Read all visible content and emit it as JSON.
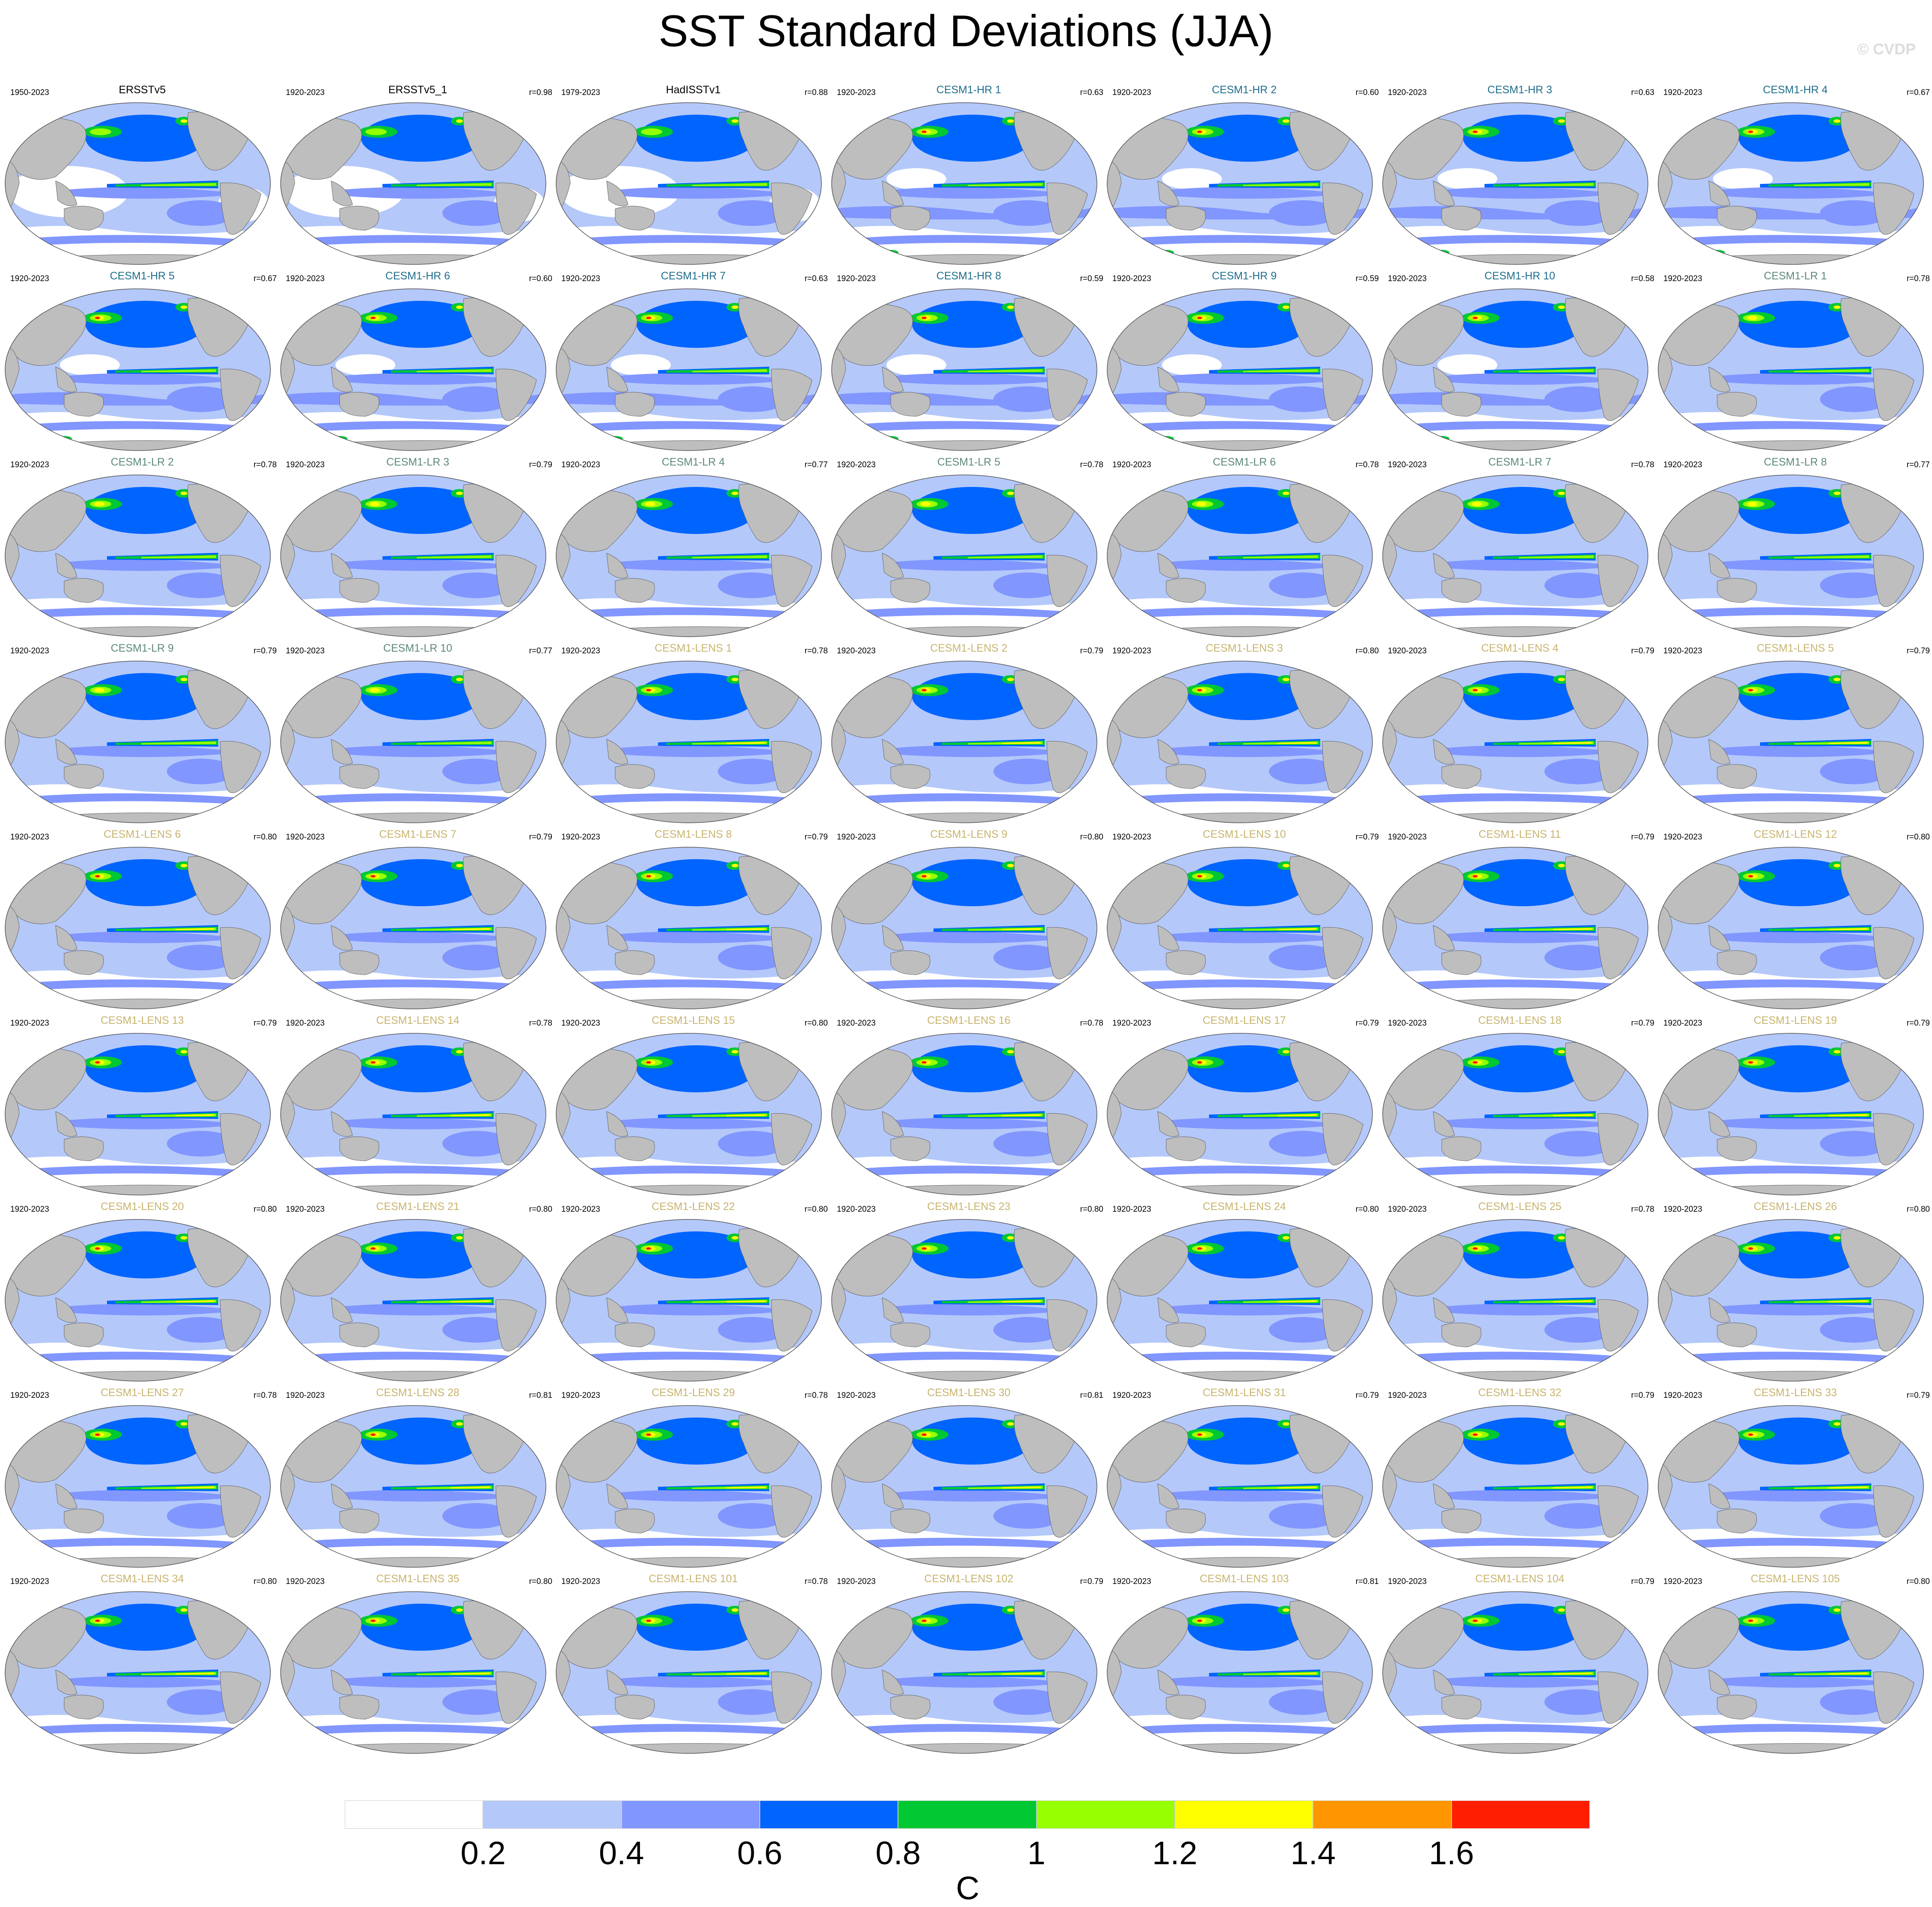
{
  "title": "SST Standard Deviations (JJA)",
  "watermark": "© CVDP",
  "units": "C",
  "colorbar": {
    "colors": [
      "#ffffff",
      "#b4c8fa",
      "#8296ff",
      "#0064ff",
      "#00c832",
      "#96ff00",
      "#ffff00",
      "#ff9600",
      "#ff1e00"
    ],
    "labels": [
      "0.2",
      "0.4",
      "0.6",
      "0.8",
      "1",
      "1.2",
      "1.4",
      "1.6"
    ]
  },
  "colors": {
    "obs_title": "#000000",
    "hr_title": "#1f6e8c",
    "lr_title": "#5c8a78",
    "lens_title": "#c8b46e",
    "land": "#bebebe"
  },
  "panels": [
    {
      "title": "ERSSTv5",
      "period": "1950-2023",
      "corr": "",
      "group": "obs"
    },
    {
      "title": "ERSSTv5_1",
      "period": "1920-2023",
      "corr": "r=0.98",
      "group": "obs"
    },
    {
      "title": "HadISSTv1",
      "period": "1979-2023",
      "corr": "r=0.88",
      "group": "obs"
    },
    {
      "title": "CESM1-HR 1",
      "period": "1920-2023",
      "corr": "r=0.63",
      "group": "hr"
    },
    {
      "title": "CESM1-HR 2",
      "period": "1920-2023",
      "corr": "r=0.60",
      "group": "hr"
    },
    {
      "title": "CESM1-HR 3",
      "period": "1920-2023",
      "corr": "r=0.63",
      "group": "hr"
    },
    {
      "title": "CESM1-HR 4",
      "period": "1920-2023",
      "corr": "r=0.67",
      "group": "hr"
    },
    {
      "title": "CESM1-HR 5",
      "period": "1920-2023",
      "corr": "r=0.67",
      "group": "hr"
    },
    {
      "title": "CESM1-HR 6",
      "period": "1920-2023",
      "corr": "r=0.60",
      "group": "hr"
    },
    {
      "title": "CESM1-HR 7",
      "period": "1920-2023",
      "corr": "r=0.63",
      "group": "hr"
    },
    {
      "title": "CESM1-HR 8",
      "period": "1920-2023",
      "corr": "r=0.59",
      "group": "hr"
    },
    {
      "title": "CESM1-HR 9",
      "period": "1920-2023",
      "corr": "r=0.59",
      "group": "hr"
    },
    {
      "title": "CESM1-HR 10",
      "period": "1920-2023",
      "corr": "r=0.58",
      "group": "hr"
    },
    {
      "title": "CESM1-LR 1",
      "period": "1920-2023",
      "corr": "r=0.78",
      "group": "lr"
    },
    {
      "title": "CESM1-LR 2",
      "period": "1920-2023",
      "corr": "r=0.78",
      "group": "lr"
    },
    {
      "title": "CESM1-LR 3",
      "period": "1920-2023",
      "corr": "r=0.79",
      "group": "lr"
    },
    {
      "title": "CESM1-LR 4",
      "period": "1920-2023",
      "corr": "r=0.77",
      "group": "lr"
    },
    {
      "title": "CESM1-LR 5",
      "period": "1920-2023",
      "corr": "r=0.78",
      "group": "lr"
    },
    {
      "title": "CESM1-LR 6",
      "period": "1920-2023",
      "corr": "r=0.78",
      "group": "lr"
    },
    {
      "title": "CESM1-LR 7",
      "period": "1920-2023",
      "corr": "r=0.78",
      "group": "lr"
    },
    {
      "title": "CESM1-LR 8",
      "period": "1920-2023",
      "corr": "r=0.77",
      "group": "lr"
    },
    {
      "title": "CESM1-LR 9",
      "period": "1920-2023",
      "corr": "r=0.79",
      "group": "lr"
    },
    {
      "title": "CESM1-LR 10",
      "period": "1920-2023",
      "corr": "r=0.77",
      "group": "lr"
    },
    {
      "title": "CESM1-LENS 1",
      "period": "1920-2023",
      "corr": "r=0.78",
      "group": "lens"
    },
    {
      "title": "CESM1-LENS 2",
      "period": "1920-2023",
      "corr": "r=0.79",
      "group": "lens"
    },
    {
      "title": "CESM1-LENS 3",
      "period": "1920-2023",
      "corr": "r=0.80",
      "group": "lens"
    },
    {
      "title": "CESM1-LENS 4",
      "period": "1920-2023",
      "corr": "r=0.79",
      "group": "lens"
    },
    {
      "title": "CESM1-LENS 5",
      "period": "1920-2023",
      "corr": "r=0.79",
      "group": "lens"
    },
    {
      "title": "CESM1-LENS 6",
      "period": "1920-2023",
      "corr": "r=0.80",
      "group": "lens"
    },
    {
      "title": "CESM1-LENS 7",
      "period": "1920-2023",
      "corr": "r=0.79",
      "group": "lens"
    },
    {
      "title": "CESM1-LENS 8",
      "period": "1920-2023",
      "corr": "r=0.79",
      "group": "lens"
    },
    {
      "title": "CESM1-LENS 9",
      "period": "1920-2023",
      "corr": "r=0.80",
      "group": "lens"
    },
    {
      "title": "CESM1-LENS 10",
      "period": "1920-2023",
      "corr": "r=0.79",
      "group": "lens"
    },
    {
      "title": "CESM1-LENS 11",
      "period": "1920-2023",
      "corr": "r=0.79",
      "group": "lens"
    },
    {
      "title": "CESM1-LENS 12",
      "period": "1920-2023",
      "corr": "r=0.80",
      "group": "lens"
    },
    {
      "title": "CESM1-LENS 13",
      "period": "1920-2023",
      "corr": "r=0.79",
      "group": "lens"
    },
    {
      "title": "CESM1-LENS 14",
      "period": "1920-2023",
      "corr": "r=0.78",
      "group": "lens"
    },
    {
      "title": "CESM1-LENS 15",
      "period": "1920-2023",
      "corr": "r=0.80",
      "group": "lens"
    },
    {
      "title": "CESM1-LENS 16",
      "period": "1920-2023",
      "corr": "r=0.78",
      "group": "lens"
    },
    {
      "title": "CESM1-LENS 17",
      "period": "1920-2023",
      "corr": "r=0.79",
      "group": "lens"
    },
    {
      "title": "CESM1-LENS 18",
      "period": "1920-2023",
      "corr": "r=0.79",
      "group": "lens"
    },
    {
      "title": "CESM1-LENS 19",
      "period": "1920-2023",
      "corr": "r=0.79",
      "group": "lens"
    },
    {
      "title": "CESM1-LENS 20",
      "period": "1920-2023",
      "corr": "r=0.80",
      "group": "lens"
    },
    {
      "title": "CESM1-LENS 21",
      "period": "1920-2023",
      "corr": "r=0.80",
      "group": "lens"
    },
    {
      "title": "CESM1-LENS 22",
      "period": "1920-2023",
      "corr": "r=0.80",
      "group": "lens"
    },
    {
      "title": "CESM1-LENS 23",
      "period": "1920-2023",
      "corr": "r=0.80",
      "group": "lens"
    },
    {
      "title": "CESM1-LENS 24",
      "period": "1920-2023",
      "corr": "r=0.80",
      "group": "lens"
    },
    {
      "title": "CESM1-LENS 25",
      "period": "1920-2023",
      "corr": "r=0.78",
      "group": "lens"
    },
    {
      "title": "CESM1-LENS 26",
      "period": "1920-2023",
      "corr": "r=0.80",
      "group": "lens"
    },
    {
      "title": "CESM1-LENS 27",
      "period": "1920-2023",
      "corr": "r=0.78",
      "group": "lens"
    },
    {
      "title": "CESM1-LENS 28",
      "period": "1920-2023",
      "corr": "r=0.81",
      "group": "lens"
    },
    {
      "title": "CESM1-LENS 29",
      "period": "1920-2023",
      "corr": "r=0.78",
      "group": "lens"
    },
    {
      "title": "CESM1-LENS 30",
      "period": "1920-2023",
      "corr": "r=0.81",
      "group": "lens"
    },
    {
      "title": "CESM1-LENS 31",
      "period": "1920-2023",
      "corr": "r=0.79",
      "group": "lens"
    },
    {
      "title": "CESM1-LENS 32",
      "period": "1920-2023",
      "corr": "r=0.79",
      "group": "lens"
    },
    {
      "title": "CESM1-LENS 33",
      "period": "1920-2023",
      "corr": "r=0.79",
      "group": "lens"
    },
    {
      "title": "CESM1-LENS 34",
      "period": "1920-2023",
      "corr": "r=0.80",
      "group": "lens"
    },
    {
      "title": "CESM1-LENS 35",
      "period": "1920-2023",
      "corr": "r=0.80",
      "group": "lens"
    },
    {
      "title": "CESM1-LENS 101",
      "period": "1920-2023",
      "corr": "r=0.78",
      "group": "lens"
    },
    {
      "title": "CESM1-LENS 102",
      "period": "1920-2023",
      "corr": "r=0.79",
      "group": "lens"
    },
    {
      "title": "CESM1-LENS 103",
      "period": "1920-2023",
      "corr": "r=0.81",
      "group": "lens"
    },
    {
      "title": "CESM1-LENS 104",
      "period": "1920-2023",
      "corr": "r=0.79",
      "group": "lens"
    },
    {
      "title": "CESM1-LENS 105",
      "period": "1920-2023",
      "corr": "r=0.80",
      "group": "lens"
    }
  ]
}
